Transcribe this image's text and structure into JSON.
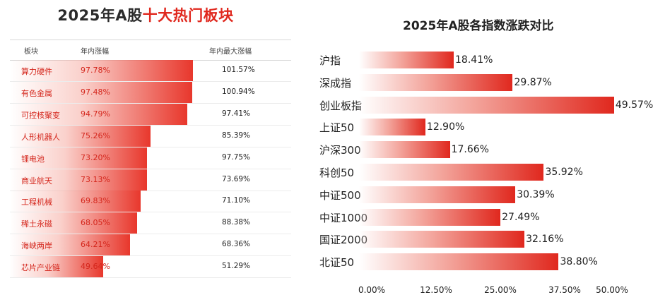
{
  "chart_data": [
    {
      "type": "table",
      "title_prefix": "2025年A股",
      "title_highlight": "十大热门板块",
      "columns": [
        "板块",
        "年内涨幅",
        "年内最大涨幅"
      ],
      "rows": [
        {
          "name": "算力硬件",
          "ytd": 97.78,
          "ytd_label": "97.78%",
          "max_label": "101.57%"
        },
        {
          "name": "有色金属",
          "ytd": 97.48,
          "ytd_label": "97.48%",
          "max_label": "100.94%"
        },
        {
          "name": "可控核聚变",
          "ytd": 94.79,
          "ytd_label": "94.79%",
          "max_label": "97.41%"
        },
        {
          "name": "人形机器人",
          "ytd": 75.26,
          "ytd_label": "75.26%",
          "max_label": "85.39%"
        },
        {
          "name": "锂电池",
          "ytd": 73.2,
          "ytd_label": "73.20%",
          "max_label": "97.75%"
        },
        {
          "name": "商业航天",
          "ytd": 73.13,
          "ytd_label": "73.13%",
          "max_label": "73.69%"
        },
        {
          "name": "工程机械",
          "ytd": 69.83,
          "ytd_label": "69.83%",
          "max_label": "71.10%"
        },
        {
          "name": "稀土永磁",
          "ytd": 68.05,
          "ytd_label": "68.05%",
          "max_label": "88.38%"
        },
        {
          "name": "海峡两岸",
          "ytd": 64.21,
          "ytd_label": "64.21%",
          "max_label": "68.36%"
        },
        {
          "name": "芯片产业链",
          "ytd": 49.64,
          "ytd_label": "49.64%",
          "max_label": "51.29%"
        }
      ]
    },
    {
      "type": "bar",
      "orientation": "horizontal",
      "title": "2025年A股各指数涨跌对比",
      "categories": [
        "沪指",
        "深成指",
        "创业板指",
        "上证50",
        "沪深300",
        "科创50",
        "中证500",
        "中证1000",
        "国证2000",
        "北证50"
      ],
      "values": [
        18.41,
        29.87,
        49.57,
        12.9,
        17.66,
        35.92,
        30.39,
        27.49,
        32.16,
        38.8
      ],
      "value_labels": [
        "18.41%",
        "29.87%",
        "49.57%",
        "12.90%",
        "17.66%",
        "35.92%",
        "30.39%",
        "27.49%",
        "32.16%",
        "38.80%"
      ],
      "xlim": [
        0,
        50
      ],
      "xticks": [
        "0.00%",
        "12.50%",
        "25.00%",
        "37.50%",
        "50.00%"
      ],
      "xlabel": "",
      "ylabel": ""
    }
  ]
}
